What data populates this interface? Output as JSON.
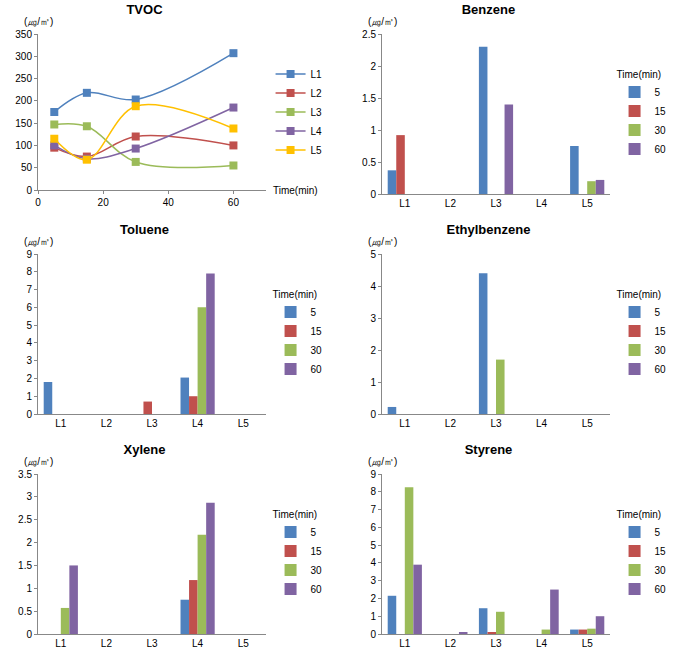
{
  "chart_data": [
    {
      "type": "line",
      "title": "TVOC",
      "ylabel": "(㎍/㎥)",
      "xlabel": "Time(min)",
      "x": [
        5,
        15,
        30,
        60
      ],
      "xlim": [
        0,
        70
      ],
      "xticks": [
        0,
        20,
        40,
        60
      ],
      "ylim": [
        0,
        350
      ],
      "yticks": [
        0,
        50,
        100,
        150,
        200,
        250,
        300,
        350
      ],
      "grid": false,
      "legend": "right",
      "marker": "square",
      "line_style": "smooth",
      "series": [
        {
          "name": "L1",
          "color": "#4F81BD",
          "values": [
            175,
            218,
            203,
            307
          ]
        },
        {
          "name": "L2",
          "color": "#C0504D",
          "values": [
            95,
            75,
            120,
            100
          ]
        },
        {
          "name": "L3",
          "color": "#9BBB59",
          "values": [
            147,
            143,
            63,
            55
          ]
        },
        {
          "name": "L4",
          "color": "#8064A2",
          "values": [
            100,
            70,
            93,
            185
          ]
        },
        {
          "name": "L5",
          "color": "#FFC000",
          "values": [
            115,
            68,
            188,
            138
          ]
        }
      ]
    },
    {
      "type": "bar",
      "title": "Benzene",
      "ylabel": "(㎍/㎥)",
      "legend_title": "Time(min)",
      "categories": [
        "L1",
        "L2",
        "L3",
        "L4",
        "L5"
      ],
      "ylim": [
        0,
        2.5
      ],
      "yticks": [
        0,
        0.5,
        1,
        1.5,
        2,
        2.5
      ],
      "grid": false,
      "legend": "right",
      "series": [
        {
          "name": "5",
          "color": "#4F81BD",
          "values": [
            0.37,
            0,
            2.3,
            0,
            0.75
          ]
        },
        {
          "name": "15",
          "color": "#C0504D",
          "values": [
            0.92,
            0,
            0,
            0,
            0
          ]
        },
        {
          "name": "30",
          "color": "#9BBB59",
          "values": [
            0,
            0,
            0,
            0,
            0.2
          ]
        },
        {
          "name": "60",
          "color": "#8064A2",
          "values": [
            0,
            0,
            1.4,
            0,
            0.22
          ]
        }
      ]
    },
    {
      "type": "bar",
      "title": "Toluene",
      "ylabel": "(㎍/㎥)",
      "legend_title": "Time(min)",
      "categories": [
        "L1",
        "L2",
        "L3",
        "L4",
        "L5"
      ],
      "ylim": [
        0,
        9
      ],
      "yticks": [
        0,
        1,
        2,
        3,
        4,
        5,
        6,
        7,
        8,
        9
      ],
      "grid": false,
      "legend": "right",
      "series": [
        {
          "name": "5",
          "color": "#4F81BD",
          "values": [
            1.8,
            0,
            0,
            2.05,
            0
          ]
        },
        {
          "name": "15",
          "color": "#C0504D",
          "values": [
            0,
            0,
            0.7,
            1.0,
            0
          ]
        },
        {
          "name": "30",
          "color": "#9BBB59",
          "values": [
            0,
            0,
            0,
            6.0,
            0
          ]
        },
        {
          "name": "60",
          "color": "#8064A2",
          "values": [
            0,
            0,
            0,
            7.9,
            0
          ]
        }
      ]
    },
    {
      "type": "bar",
      "title": "Ethylbenzene",
      "ylabel": "(㎍/㎥)",
      "legend_title": "Time(min)",
      "categories": [
        "L1",
        "L2",
        "L3",
        "L4",
        "L5"
      ],
      "ylim": [
        0,
        5
      ],
      "yticks": [
        0,
        1,
        2,
        3,
        4,
        5
      ],
      "grid": false,
      "legend": "right",
      "series": [
        {
          "name": "5",
          "color": "#4F81BD",
          "values": [
            0.22,
            0,
            4.4,
            0,
            0
          ]
        },
        {
          "name": "15",
          "color": "#C0504D",
          "values": [
            0,
            0,
            0,
            0,
            0
          ]
        },
        {
          "name": "30",
          "color": "#9BBB59",
          "values": [
            0,
            0,
            1.7,
            0,
            0
          ]
        },
        {
          "name": "60",
          "color": "#8064A2",
          "values": [
            0,
            0,
            0,
            0,
            0
          ]
        }
      ]
    },
    {
      "type": "bar",
      "title": "Xylene",
      "ylabel": "(㎍/㎥)",
      "legend_title": "Time(min)",
      "categories": [
        "L1",
        "L2",
        "L3",
        "L4",
        "L5"
      ],
      "ylim": [
        0,
        3.5
      ],
      "yticks": [
        0,
        0.5,
        1,
        1.5,
        2,
        2.5,
        3,
        3.5
      ],
      "grid": false,
      "legend": "right",
      "series": [
        {
          "name": "5",
          "color": "#4F81BD",
          "values": [
            0,
            0,
            0,
            0.75,
            0
          ]
        },
        {
          "name": "15",
          "color": "#C0504D",
          "values": [
            0,
            0,
            0,
            1.18,
            0
          ]
        },
        {
          "name": "30",
          "color": "#9BBB59",
          "values": [
            0.57,
            0,
            0,
            2.17,
            0
          ]
        },
        {
          "name": "60",
          "color": "#8064A2",
          "values": [
            1.5,
            0,
            0,
            2.87,
            0
          ]
        }
      ]
    },
    {
      "type": "bar",
      "title": "Styrene",
      "ylabel": "(㎍/㎥)",
      "legend_title": "Time(min)",
      "categories": [
        "L1",
        "L2",
        "L3",
        "L4",
        "L5"
      ],
      "ylim": [
        0,
        9
      ],
      "yticks": [
        0,
        1,
        2,
        3,
        4,
        5,
        6,
        7,
        8,
        9
      ],
      "grid": false,
      "legend": "right",
      "series": [
        {
          "name": "5",
          "color": "#4F81BD",
          "values": [
            2.15,
            0,
            1.45,
            0,
            0.25
          ]
        },
        {
          "name": "15",
          "color": "#C0504D",
          "values": [
            0,
            0,
            0.08,
            0,
            0.25
          ]
        },
        {
          "name": "30",
          "color": "#9BBB59",
          "values": [
            8.25,
            0,
            1.25,
            0.25,
            0.3
          ]
        },
        {
          "name": "60",
          "color": "#8064A2",
          "values": [
            3.9,
            0.1,
            0,
            2.5,
            1.0
          ]
        }
      ]
    }
  ]
}
